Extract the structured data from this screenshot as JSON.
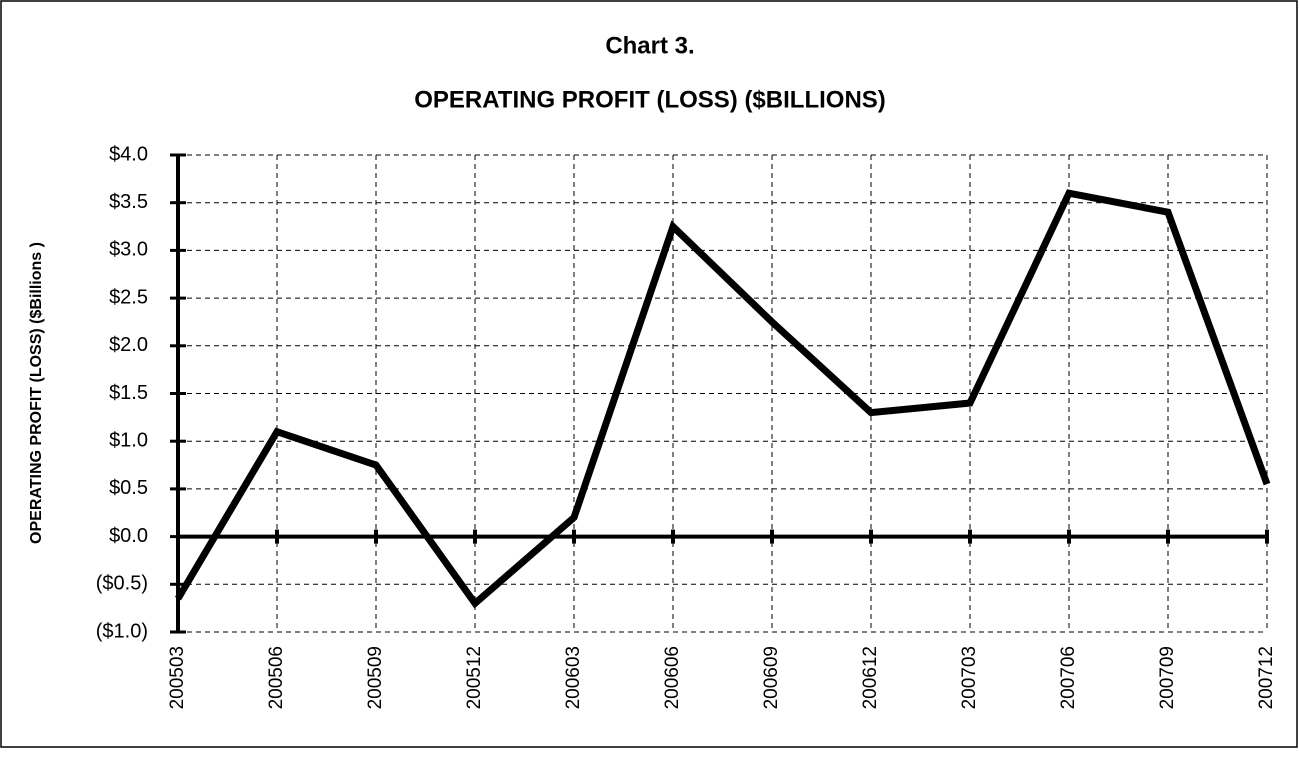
{
  "chart_data": {
    "type": "line",
    "title": [
      "Chart 3.",
      "OPERATING PROFIT (LOSS) ($BILLIONS)"
    ],
    "y_label": "OPERATING PROFIT (LOSS) ($Billions )",
    "categories": [
      "200503",
      "200506",
      "200509",
      "200512",
      "200603",
      "200606",
      "200609",
      "200612",
      "200703",
      "200706",
      "200709",
      "200712"
    ],
    "series": [
      {
        "name": "Operating profit (loss)",
        "color": "#000000",
        "values": [
          -0.65,
          1.1,
          0.75,
          -0.7,
          0.2,
          3.25,
          2.25,
          1.3,
          1.4,
          3.6,
          3.4,
          0.55
        ]
      }
    ],
    "ylim": [
      -1.0,
      4.0
    ],
    "yticks": [
      {
        "value": -1.0,
        "label": "($1.0)"
      },
      {
        "value": -0.5,
        "label": "($0.5)"
      },
      {
        "value": 0,
        "label": "$0.0"
      },
      {
        "value": 0.5,
        "label": "$0.5"
      },
      {
        "value": 1.0,
        "label": "$1.0"
      },
      {
        "value": 1.5,
        "label": "$1.5"
      },
      {
        "value": 2.0,
        "label": "$2.0"
      },
      {
        "value": 2.5,
        "label": "$2.5"
      },
      {
        "value": 3.0,
        "label": "$3.0"
      },
      {
        "value": 3.5,
        "label": "$3.5"
      },
      {
        "value": 4.0,
        "label": "$4.0"
      }
    ],
    "grid": true
  }
}
